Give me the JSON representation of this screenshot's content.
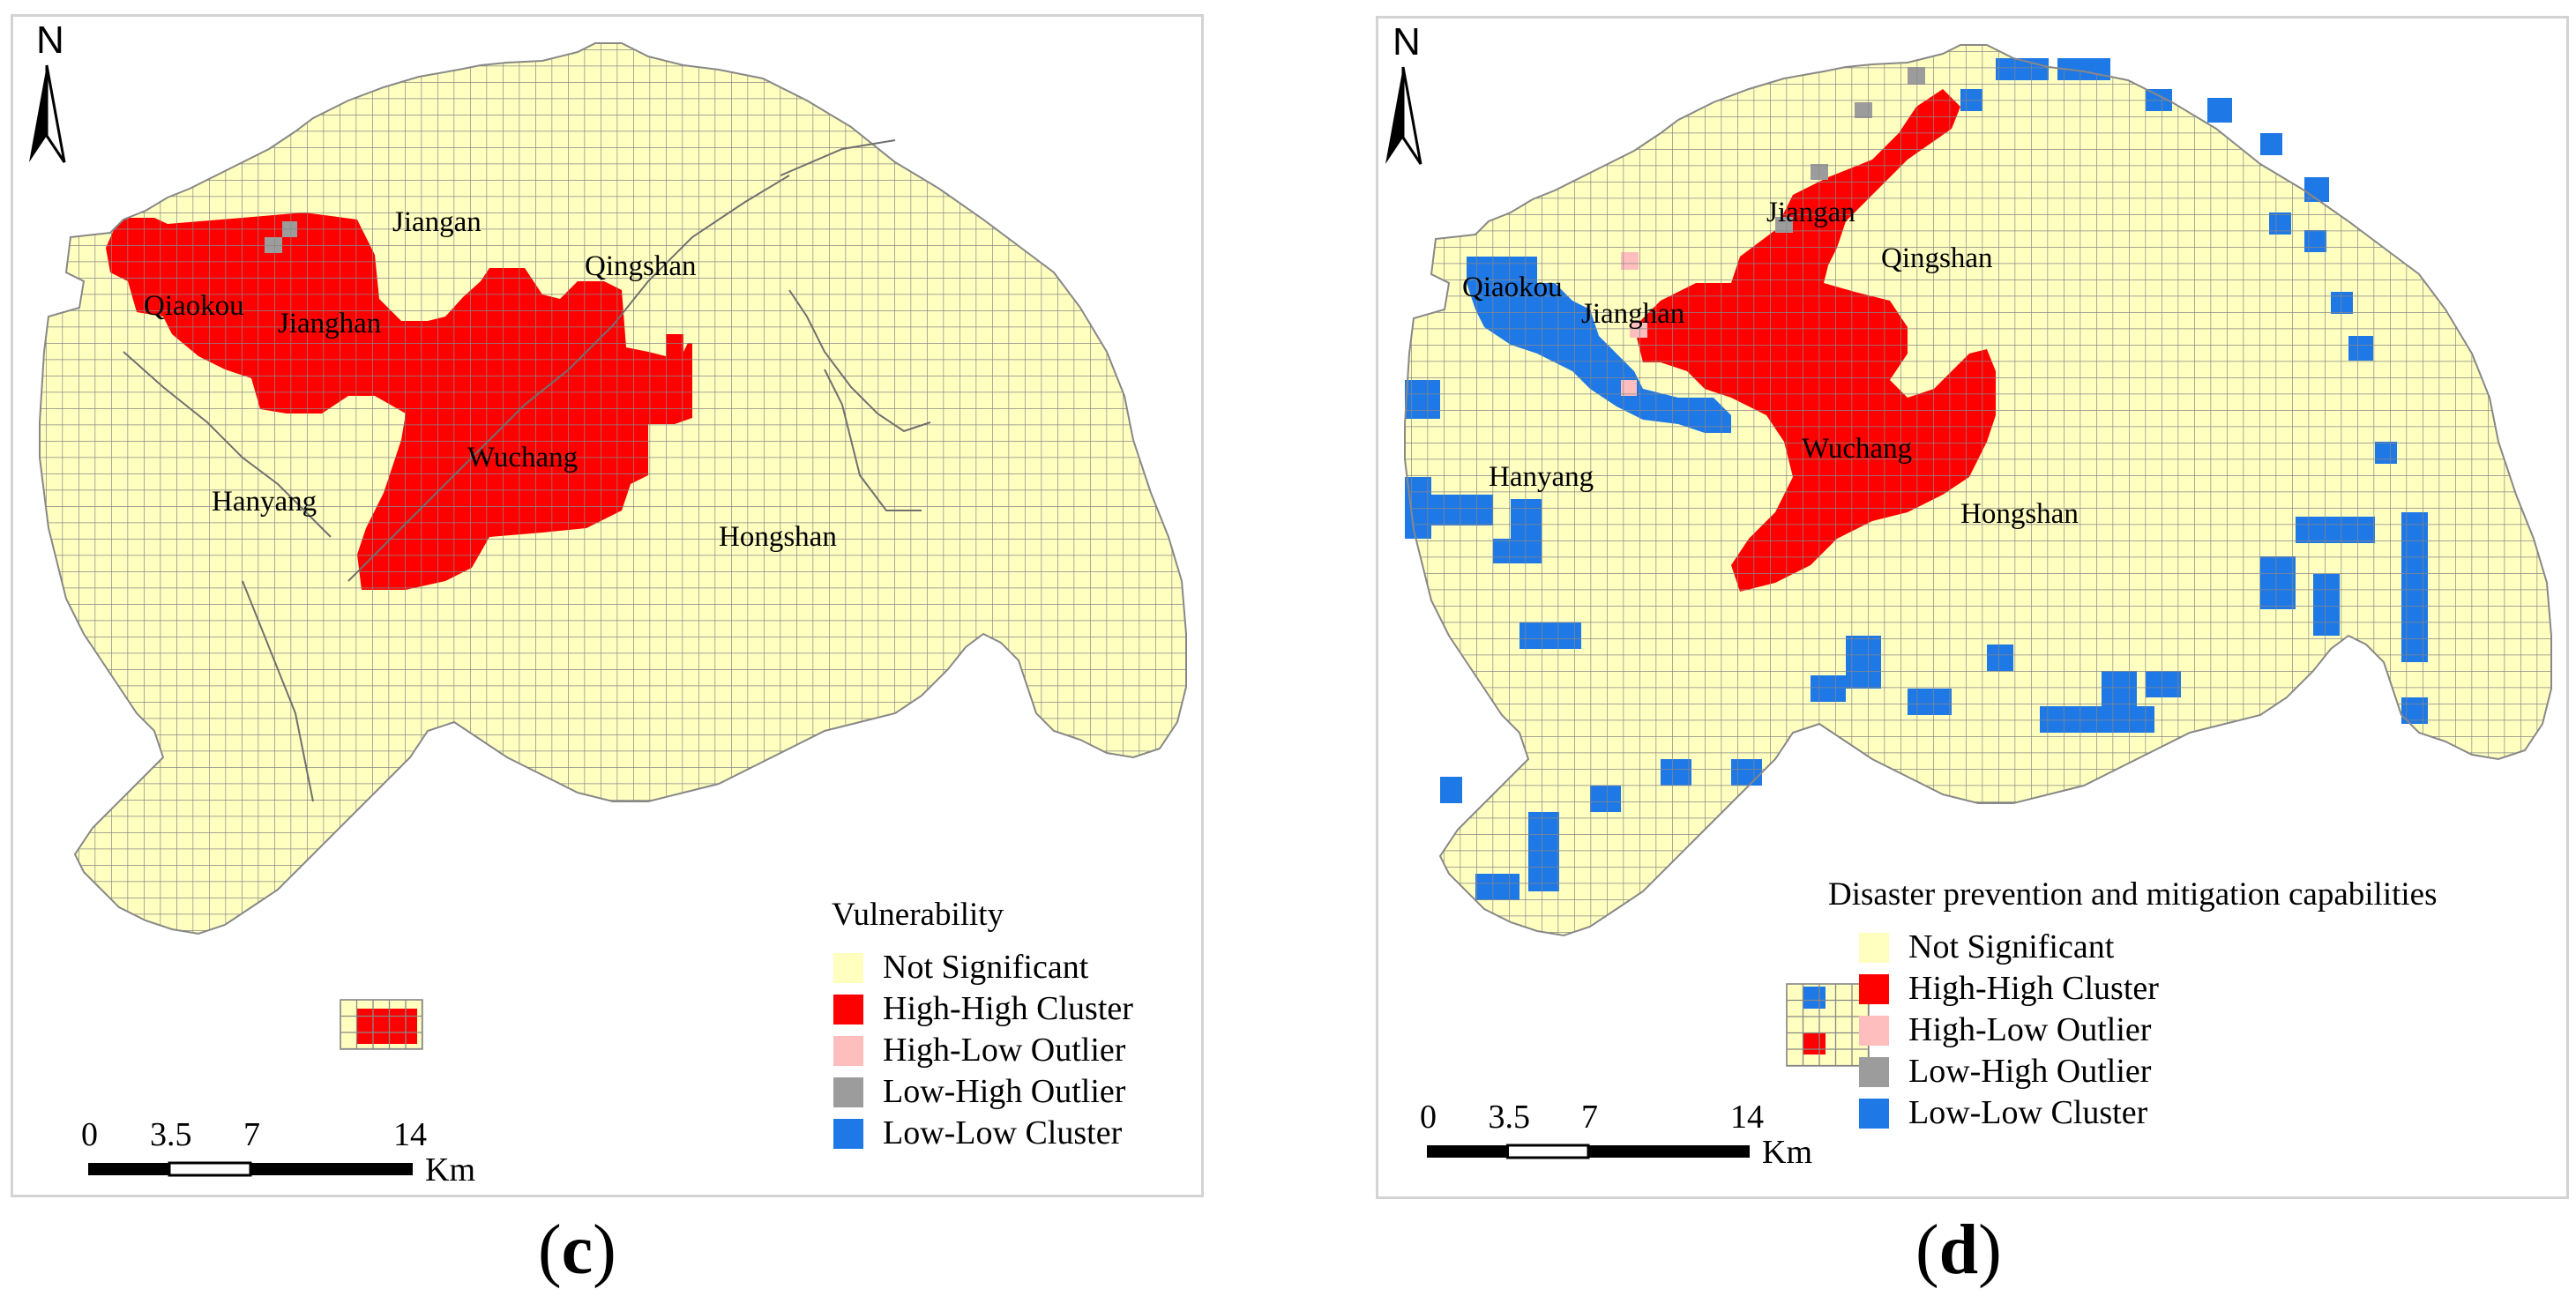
{
  "colors": {
    "not_significant": "#ffffc0",
    "high_high": "#ff0000",
    "high_low": "#ffbebe",
    "low_high": "#9c9c9c",
    "low_low": "#1e78e6",
    "grid_line": "#888888",
    "boundary": "#707070"
  },
  "legend_items": [
    {
      "label": "Not Significant",
      "color_key": "not_significant"
    },
    {
      "label": "High-High Cluster",
      "color_key": "high_high"
    },
    {
      "label": "High-Low Outlier",
      "color_key": "high_low"
    },
    {
      "label": "Low-High Outlier",
      "color_key": "low_high"
    },
    {
      "label": "Low-Low Cluster",
      "color_key": "low_low"
    }
  ],
  "scale_bar": {
    "ticks": [
      "0",
      "3.5",
      "7",
      "14"
    ],
    "unit": "Km"
  },
  "north_arrow": {
    "label": "N",
    "icon": "north-arrow-icon"
  },
  "panels": {
    "c": {
      "caption_open": "(",
      "caption_letter": "c",
      "caption_close": ")",
      "legend_title": "Vulnerability",
      "districts": {
        "jiangan": "Jiangan",
        "qingshan": "Qingshan",
        "qiaokou": "Qiaokou",
        "jianghan": "Jianghan",
        "wuchang": "Wuchang",
        "hanyang": "Hanyang",
        "hongshan": "Hongshan"
      }
    },
    "d": {
      "caption_open": "(",
      "caption_letter": "d",
      "caption_close": ")",
      "legend_title": "Disaster prevention and mitigation capabilities",
      "districts": {
        "jiangan": "Jiangan",
        "qingshan": "Qingshan",
        "qiaokou": "Qiaokou",
        "jianghan": "Jianghan",
        "wuchang": "Wuchang",
        "hanyang": "Hanyang",
        "hongshan": "Hongshan"
      }
    }
  }
}
